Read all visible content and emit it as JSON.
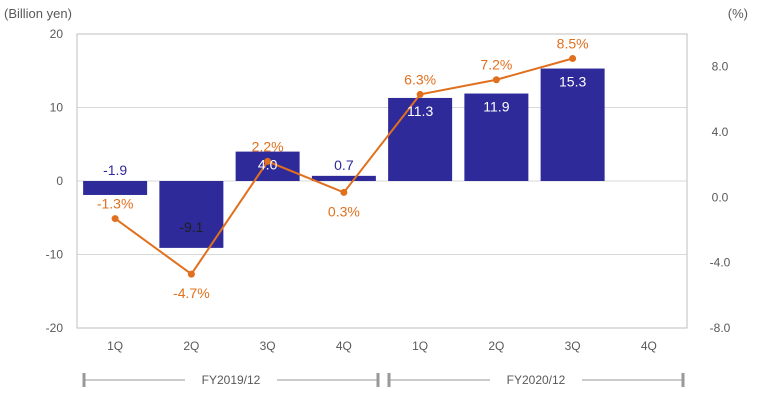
{
  "chart_data": {
    "type": "bar",
    "left_axis_unit": "(Billion yen)",
    "right_axis_unit": "(%)",
    "categories": [
      "1Q",
      "2Q",
      "3Q",
      "4Q",
      "1Q",
      "2Q",
      "3Q",
      "4Q"
    ],
    "y_left": {
      "ylim": [
        -20,
        20
      ],
      "ticks": [
        "20",
        "10",
        "0",
        "-10",
        "-20"
      ],
      "tick_values": [
        20,
        10,
        0,
        -10,
        -20
      ]
    },
    "y_right": {
      "ylim": [
        -8,
        10
      ],
      "ticks": [
        "8.0",
        "4.0",
        "0.0",
        "-4.0",
        "-8.0"
      ],
      "tick_values": [
        8,
        4,
        0,
        -4,
        -8
      ]
    },
    "bar_series": {
      "values": [
        -1.9,
        -9.1,
        4.0,
        0.7,
        11.3,
        11.9,
        15.3,
        null
      ],
      "labels": [
        "-1.9",
        "-9.1",
        "4.0",
        "0.7",
        "11.3",
        "11.9",
        "15.3",
        ""
      ],
      "color": "#2e2a9a"
    },
    "line_series": {
      "values": [
        -1.3,
        -4.7,
        2.2,
        0.3,
        6.3,
        7.2,
        8.5,
        null
      ],
      "labels": [
        "-1.3%",
        "-4.7%",
        "2.2%",
        "0.3%",
        "6.3%",
        "7.2%",
        "8.5%",
        ""
      ],
      "color": "#e0701e"
    },
    "groups": [
      {
        "label": "FY2019/12",
        "from": 0,
        "to": 3
      },
      {
        "label": "FY2020/12",
        "from": 4,
        "to": 7
      }
    ],
    "grid": true,
    "colors": {
      "grid": "#d9d9d9",
      "axis": "#bfbfbf",
      "tick_text": "#595959",
      "bar_label_inside": "#ffffff",
      "bar_label_outside": "#2e2a9a",
      "bracket": "#999999"
    }
  }
}
